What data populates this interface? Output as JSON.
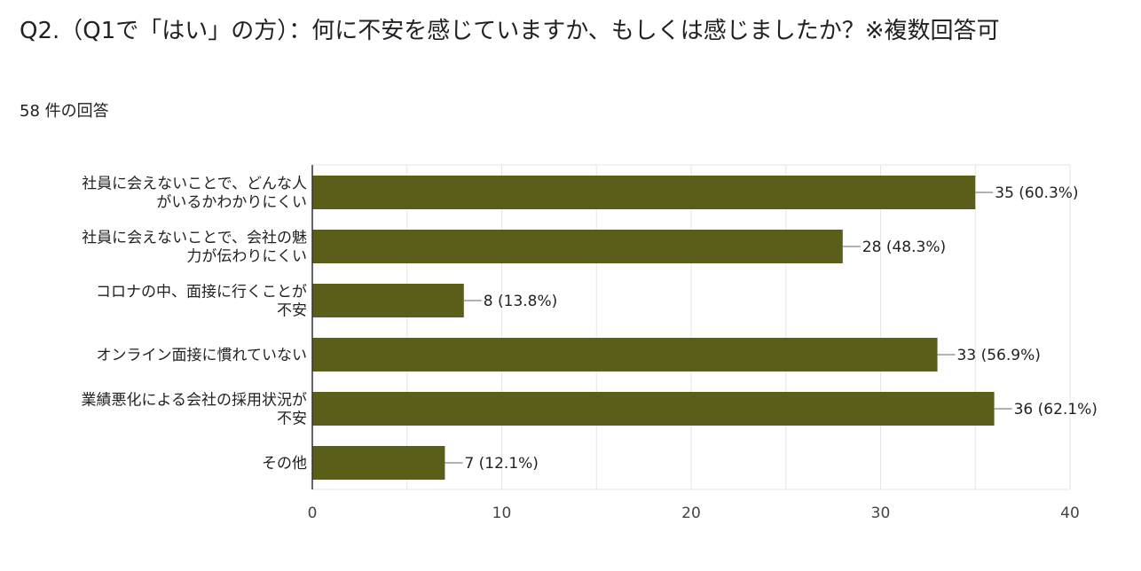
{
  "question": {
    "title": "Q2.（Q1で「はい」の方）：何に不安を感じていますか、もしくは感じましたか？※複数回答可",
    "response_count": "58 件の回答"
  },
  "colors": {
    "bar": "#5a5e18",
    "grid": "#e6e6e6",
    "axis": "#333333",
    "leader": "#999999"
  },
  "chart_data": {
    "type": "bar",
    "orientation": "horizontal",
    "categories": [
      [
        "社員に会えないことで、どんな人",
        "がいるかわかりにくい"
      ],
      [
        "社員に会えないことで、会社の魅",
        "力が伝わりにくい"
      ],
      [
        "コロナの中、面接に行くことが",
        "不安"
      ],
      [
        "オンライン面接に慣れていない"
      ],
      [
        "業績悪化による会社の採用状況が",
        "不安"
      ],
      [
        "その他"
      ]
    ],
    "values": [
      35,
      28,
      8,
      33,
      36,
      7
    ],
    "data_labels": [
      "35 (60.3%)",
      "28 (48.3%)",
      "8 (13.8%)",
      "33 (56.9%)",
      "36 (62.1%)",
      "7 (12.1%)"
    ],
    "xlim": [
      0,
      40
    ],
    "xticks": [
      0,
      10,
      20,
      30,
      40
    ],
    "grid": true,
    "legend": "none"
  }
}
